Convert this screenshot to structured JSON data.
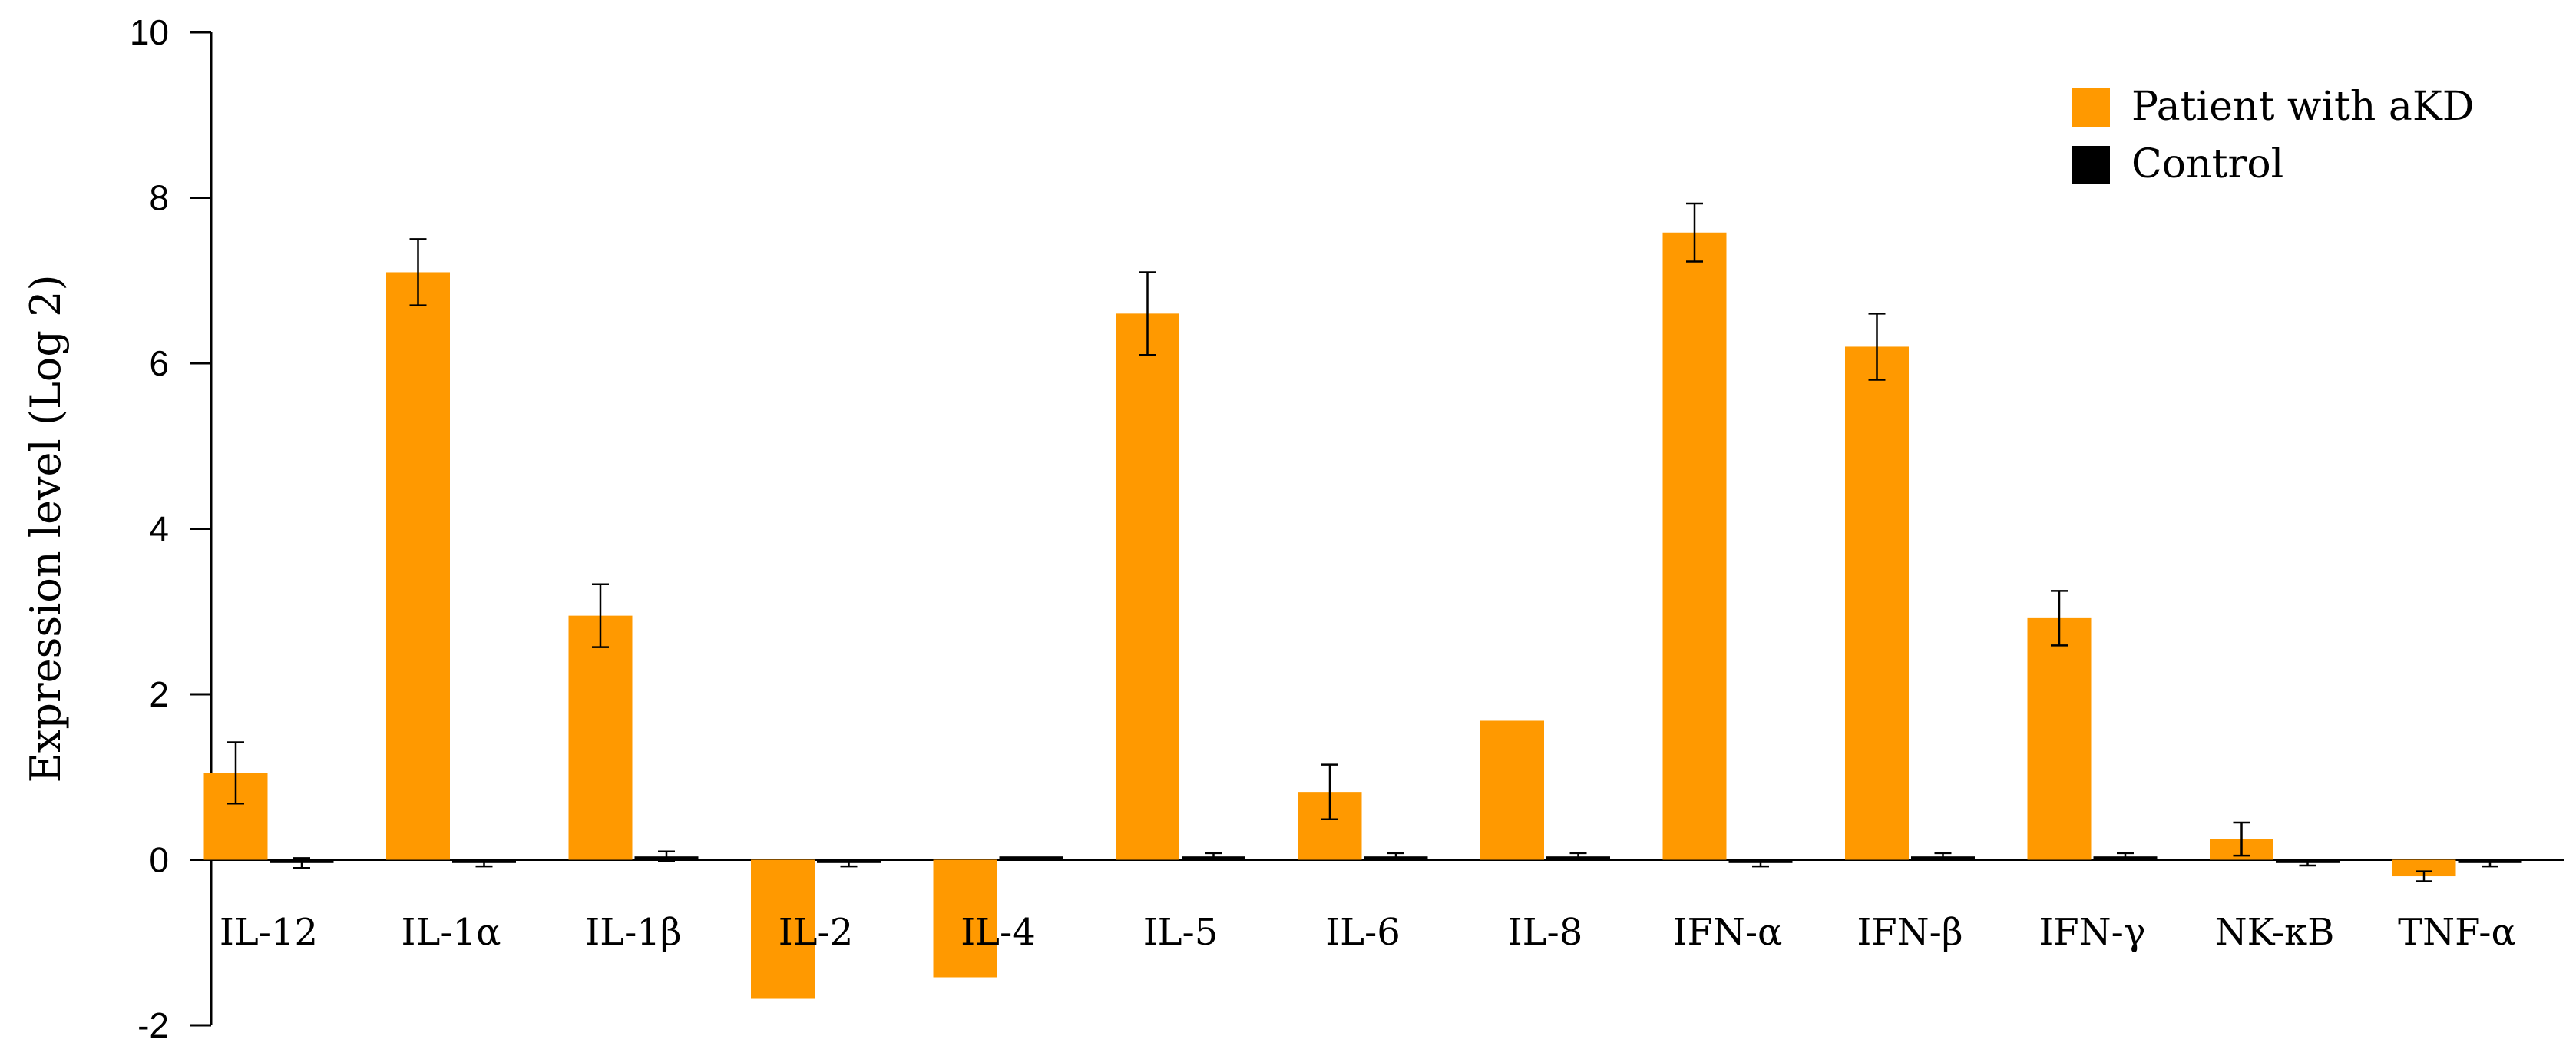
{
  "chart_data": {
    "type": "bar",
    "title": "",
    "xlabel": "",
    "ylabel": "Expression level (Log 2)",
    "ylim": [
      -2,
      10
    ],
    "yticks": [
      -2,
      0,
      2,
      4,
      6,
      8,
      10
    ],
    "grid": false,
    "legend_position": "top-right",
    "categories": [
      "IL-12",
      "IL-1α",
      "IL-1β",
      "IL-2",
      "IL-4",
      "IL-5",
      "IL-6",
      "IL-8",
      "IFN-α",
      "IFN-β",
      "IFN-γ",
      "NK-κB",
      "TNF-α"
    ],
    "series": [
      {
        "name": "Patient with aKD",
        "color": "#FF9900",
        "values": [
          1.05,
          7.1,
          2.95,
          -1.68,
          -1.42,
          6.6,
          0.82,
          1.68,
          7.58,
          6.2,
          2.92,
          0.25,
          -0.2
        ],
        "errors": [
          0.37,
          0.4,
          0.38,
          null,
          null,
          0.5,
          0.33,
          null,
          0.35,
          0.4,
          0.33,
          0.2,
          0.06
        ]
      },
      {
        "name": "Control",
        "color": "#000000",
        "values": [
          -0.04,
          -0.04,
          0.04,
          -0.04,
          0.04,
          0.04,
          0.04,
          0.04,
          -0.04,
          0.04,
          0.04,
          -0.04,
          -0.04
        ],
        "errors": [
          0.06,
          0.04,
          0.06,
          0.04,
          null,
          0.04,
          0.04,
          0.04,
          0.04,
          0.04,
          0.04,
          0.03,
          0.04
        ]
      }
    ]
  }
}
